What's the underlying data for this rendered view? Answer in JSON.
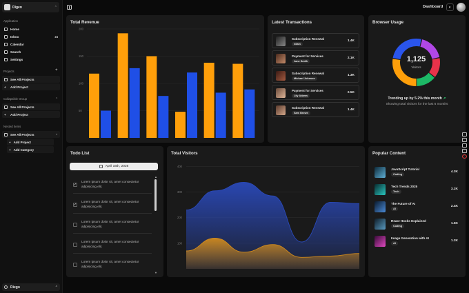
{
  "sidebar": {
    "team_name": "Digen",
    "sections": {
      "application": "Application",
      "projects": "Projects",
      "collapsible": "Collapsible Group",
      "nested": "Nested Items"
    },
    "nav": [
      {
        "label": "Home",
        "icon": "home-icon"
      },
      {
        "label": "Inbox",
        "icon": "inbox-icon",
        "badge": "24"
      },
      {
        "label": "Calendar",
        "icon": "calendar-icon"
      },
      {
        "label": "Search",
        "icon": "search-icon"
      },
      {
        "label": "Settings",
        "icon": "gear-icon"
      }
    ],
    "projects": [
      "See All Projects",
      "Add Project"
    ],
    "collapsible": [
      "See All Projects",
      "Add Project"
    ],
    "nested": {
      "parent": "See All Projects",
      "children": [
        "Add Project",
        "Add Category"
      ]
    },
    "user": "Diego"
  },
  "header": {
    "title": "Dashboard"
  },
  "revenue": {
    "title": "Total Revenue"
  },
  "transactions": {
    "title": "Latest Transactions",
    "items": [
      {
        "title": "Subscription Renewal",
        "name": "nilain",
        "amount": "1.4K"
      },
      {
        "title": "Payment for Services",
        "name": "Jane Smith",
        "amount": "2.1K"
      },
      {
        "title": "Subscription Renewal",
        "name": "Michael Johnson",
        "amount": "1.3K"
      },
      {
        "title": "Payment for Services",
        "name": "Lily Adams",
        "amount": "2.5K"
      },
      {
        "title": "Subscription Renewal",
        "name": "Sam Brown",
        "amount": "1.4K"
      }
    ]
  },
  "browser": {
    "title": "Browser Usage",
    "total": "1,125",
    "label": "Visitors",
    "trend": "Trending up by 5.2% this month",
    "subtitle": "Showing total visitors for the last 6 months"
  },
  "todo": {
    "title": "Todo List",
    "date": "April 16th, 2026",
    "items": [
      {
        "text": "Lorem ipsum dolor sit, amet consectetur adipisicing elit.",
        "done": true
      },
      {
        "text": "Lorem ipsum dolor sit, amet consectetur adipisicing elit.",
        "done": true
      },
      {
        "text": "Lorem ipsum dolor sit, amet consectetur adipisicing elit.",
        "done": false
      },
      {
        "text": "Lorem ipsum dolor sit, amet consectetur adipisicing elit.",
        "done": false
      },
      {
        "text": "Lorem ipsum dolor sit, amet consectetur adipisicing elit.",
        "done": false
      }
    ]
  },
  "visitors": {
    "title": "Total Visitors"
  },
  "popular": {
    "title": "Popular Content",
    "items": [
      {
        "title": "JavaScript Tutorial",
        "tag": "Coding",
        "value": "4.3K"
      },
      {
        "title": "Tech Trends 2025",
        "tag": "Tech",
        "value": "3.2K"
      },
      {
        "title": "The Future of AI",
        "tag": "AI",
        "value": "2.4K"
      },
      {
        "title": "React Hooks Explained",
        "tag": "Coding",
        "value": "1.5K"
      },
      {
        "title": "Image Generation with AI",
        "tag": "AI",
        "value": "1.2K"
      }
    ]
  },
  "colors": {
    "orange": "#ff9f0a",
    "blue": "#1f4fe6",
    "card": "#1a1a1a"
  },
  "chart_data": [
    {
      "type": "bar",
      "title": "Total Revenue",
      "yticks": [
        "50",
        "100",
        "150",
        "200"
      ],
      "ylim": [
        0,
        200
      ],
      "series": [
        {
          "values": [
            118,
            192,
            150,
            48,
            138,
            136
          ]
        },
        {
          "values": [
            50,
            128,
            77,
            120,
            83,
            89
          ]
        }
      ],
      "colors": [
        "#ff9f0a",
        "#1f4fe6"
      ],
      "grid": true
    },
    {
      "type": "pie",
      "title": "Browser Usage",
      "values": [
        28,
        26,
        18,
        14,
        14
      ],
      "colors": [
        "#ff9f0a",
        "#2a55ec",
        "#b147e6",
        "#e8324a",
        "#1db866"
      ]
    },
    {
      "type": "area",
      "title": "Total Visitors",
      "yticks": [
        "100",
        "200",
        "300",
        "400"
      ],
      "ylim": [
        0,
        420
      ],
      "series": [
        {
          "values": [
            230,
            305,
            338,
            285,
            105,
            260,
            255
          ]
        },
        {
          "values": [
            70,
            120,
            65,
            95,
            45,
            50,
            60
          ]
        }
      ],
      "colors": [
        "#2a49b8",
        "#d08a1c"
      ],
      "grid": true
    }
  ]
}
